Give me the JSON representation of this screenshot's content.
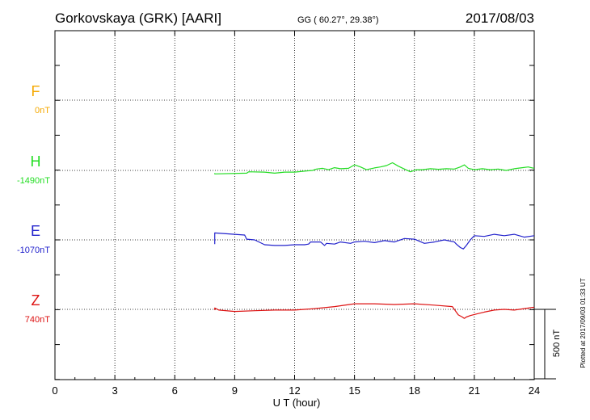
{
  "header": {
    "station": "Gorkovskaya (GRK)  [AARI]",
    "coords": "GG ( 60.27°,  29.38°)",
    "date": "2017/08/03"
  },
  "footnote": "Plotted at 2017/09/03 01:33 UT",
  "chart_data": {
    "type": "line",
    "title": "",
    "xlabel": "U T (hour)",
    "xlim": [
      0,
      24
    ],
    "xticks": [
      "0",
      "3",
      "6",
      "9",
      "12",
      "15",
      "18",
      "21",
      "24"
    ],
    "scale_label": "500 nT",
    "scale_nT": 500,
    "grid": true,
    "series": [
      {
        "name": "F",
        "baseline_label": "0nT",
        "color": "#f5a800",
        "x": [],
        "y": []
      },
      {
        "name": "H",
        "baseline_label": "-1490nT",
        "color": "#22dd22",
        "x": [
          8.0,
          8.0,
          8.0,
          9.6,
          9.7,
          10.5,
          11.0,
          11.5,
          12.0,
          12.5,
          12.9,
          13.1,
          13.4,
          13.7,
          14.0,
          14.3,
          14.7,
          15.0,
          15.3,
          15.6,
          16.0,
          16.3,
          16.6,
          16.9,
          17.2,
          17.5,
          17.8,
          18.1,
          18.4,
          18.8,
          19.2,
          19.6,
          20.0,
          20.3,
          20.5,
          20.7,
          21.0,
          21.4,
          21.8,
          22.2,
          22.6,
          23.0,
          23.4,
          23.7,
          24.0
        ],
        "y": [
          -140,
          -20,
          -25,
          -20,
          -10,
          -12,
          -20,
          -12,
          -12,
          -5,
          0,
          10,
          15,
          5,
          20,
          12,
          15,
          40,
          25,
          5,
          18,
          25,
          35,
          55,
          30,
          10,
          -10,
          5,
          5,
          12,
          8,
          12,
          10,
          25,
          40,
          15,
          5,
          12,
          5,
          10,
          0,
          12,
          20,
          25,
          15
        ],
        "gap_before": [
          1
        ]
      },
      {
        "name": "E",
        "baseline_label": "-1070nT",
        "color": "#2222cc",
        "x": [
          8.0,
          8.0,
          8.0,
          9.5,
          9.6,
          10.0,
          10.5,
          11.0,
          11.5,
          12.0,
          12.5,
          12.7,
          12.8,
          13.3,
          13.5,
          13.6,
          14.0,
          14.3,
          14.8,
          15.0,
          15.5,
          16.0,
          16.5,
          17.0,
          17.5,
          18.0,
          18.5,
          19.0,
          19.5,
          20.0,
          20.1,
          20.3,
          20.45,
          20.6,
          20.8,
          21.0,
          21.5,
          22.0,
          22.5,
          23.0,
          23.5,
          24.0
        ],
        "y": [
          -80,
          -30,
          50,
          35,
          5,
          0,
          -35,
          -40,
          -40,
          -35,
          -35,
          -30,
          -15,
          -15,
          -40,
          -25,
          -30,
          -15,
          -25,
          -15,
          -10,
          -20,
          -5,
          -15,
          10,
          5,
          -25,
          -15,
          0,
          -15,
          -30,
          -55,
          -65,
          -40,
          0,
          30,
          25,
          40,
          30,
          40,
          20,
          30
        ],
        "gap_before": [
          1
        ]
      },
      {
        "name": "Z",
        "baseline_label": "740nT",
        "color": "#dd1111",
        "x": [
          8.0,
          8.0,
          8.0,
          8.2,
          9.0,
          10.0,
          11.0,
          12.0,
          13.0,
          14.0,
          15.0,
          16.0,
          17.0,
          18.0,
          19.0,
          19.9,
          20.2,
          20.4,
          20.5,
          20.6,
          20.8,
          21.2,
          21.5,
          22.0,
          22.5,
          23.0,
          23.5,
          24.0
        ],
        "y": [
          70,
          -5,
          10,
          -5,
          -15,
          -10,
          -5,
          -5,
          5,
          20,
          40,
          40,
          35,
          40,
          30,
          20,
          -40,
          -55,
          -65,
          -55,
          -45,
          -30,
          -20,
          -5,
          0,
          -5,
          5,
          15
        ],
        "gap_before": [
          1
        ]
      }
    ]
  }
}
